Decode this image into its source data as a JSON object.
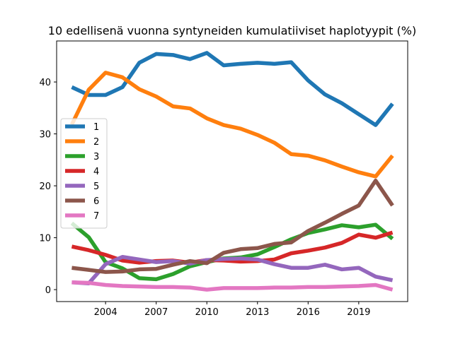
{
  "chart_data": {
    "type": "line",
    "title": "10 edellisenä vuonna syntyneiden kumulatiiviset haplotyypit (%)",
    "xlabel": "",
    "ylabel": "",
    "x": [
      2002,
      2003,
      2004,
      2005,
      2006,
      2007,
      2008,
      2009,
      2010,
      2011,
      2012,
      2013,
      2014,
      2015,
      2016,
      2017,
      2018,
      2019,
      2020,
      2021
    ],
    "xlim": [
      2001.1,
      2021.9
    ],
    "ylim": [
      -2.3,
      47.9
    ],
    "xticks": [
      2004,
      2007,
      2010,
      2013,
      2016,
      2019
    ],
    "yticks": [
      0,
      10,
      20,
      30,
      40
    ],
    "grid": false,
    "legend": "center-left",
    "series": [
      {
        "name": "1",
        "color": "#1f77b4",
        "values": [
          39.0,
          37.5,
          37.5,
          39.0,
          43.7,
          45.4,
          45.2,
          44.4,
          45.6,
          43.2,
          43.5,
          43.7,
          43.5,
          43.8,
          40.3,
          37.6,
          35.9,
          33.8,
          31.7,
          35.8
        ]
      },
      {
        "name": "2",
        "color": "#ff7f0e",
        "values": [
          31.8,
          38.5,
          41.8,
          40.9,
          38.6,
          37.2,
          35.3,
          34.9,
          33.0,
          31.7,
          31.0,
          29.8,
          28.3,
          26.1,
          25.8,
          24.9,
          23.7,
          22.6,
          21.8,
          25.8
        ]
      },
      {
        "name": "3",
        "color": "#2ca02c",
        "values": [
          12.8,
          10.1,
          5.3,
          4.1,
          2.2,
          2.0,
          3.0,
          4.5,
          5.3,
          6.0,
          6.2,
          6.8,
          8.2,
          9.7,
          10.9,
          11.6,
          12.4,
          12.0,
          12.5,
          9.8
        ]
      },
      {
        "name": "4",
        "color": "#d62728",
        "values": [
          8.3,
          7.6,
          6.7,
          5.6,
          5.2,
          5.5,
          5.6,
          5.2,
          5.7,
          5.6,
          5.4,
          5.5,
          5.8,
          7.0,
          7.5,
          8.1,
          9.0,
          10.6,
          10.0,
          11.0
        ]
      },
      {
        "name": "5",
        "color": "#9467bd",
        "values": [
          1.4,
          1.2,
          4.9,
          6.3,
          5.8,
          5.3,
          5.5,
          5.0,
          5.7,
          5.9,
          6.0,
          5.8,
          4.9,
          4.2,
          4.2,
          4.8,
          3.9,
          4.2,
          2.5,
          1.8
        ]
      },
      {
        "name": "6",
        "color": "#8c564b",
        "values": [
          4.2,
          3.8,
          3.4,
          3.5,
          3.9,
          4.0,
          4.8,
          5.5,
          5.1,
          7.1,
          7.8,
          8.0,
          8.8,
          9.1,
          11.3,
          12.9,
          14.6,
          16.2,
          21.0,
          16.2
        ]
      },
      {
        "name": "7",
        "color": "#e377c2",
        "values": [
          1.4,
          1.3,
          0.9,
          0.7,
          0.6,
          0.5,
          0.5,
          0.4,
          0.0,
          0.3,
          0.3,
          0.3,
          0.4,
          0.4,
          0.5,
          0.5,
          0.6,
          0.7,
          0.9,
          0.0
        ]
      }
    ]
  }
}
